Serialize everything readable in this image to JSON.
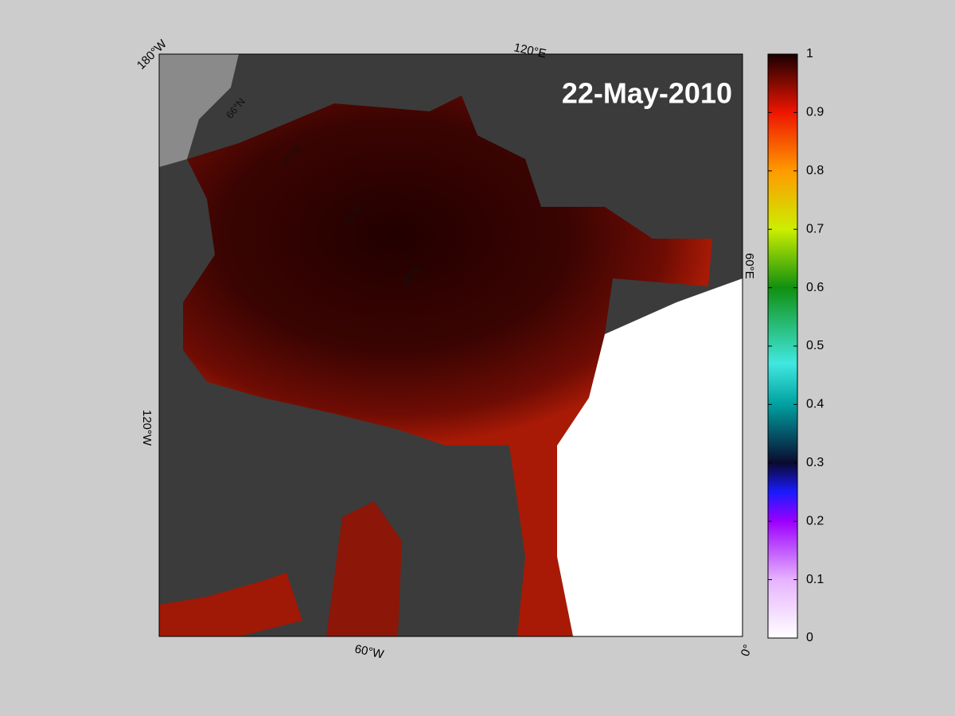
{
  "map": {
    "date": "22-May-2010",
    "lon_labels": [
      "180°W",
      "120°E",
      "60°E",
      "0°",
      "60°W",
      "120°W"
    ],
    "lat_labels": [
      "66°N",
      "72°N",
      "78°N",
      "84°N"
    ]
  },
  "colorbar": {
    "lim": [
      0,
      1
    ],
    "ticks": [
      0,
      0.1,
      0.2,
      0.3,
      0.4,
      0.5,
      0.6,
      0.7,
      0.8,
      0.9,
      1
    ]
  }
}
